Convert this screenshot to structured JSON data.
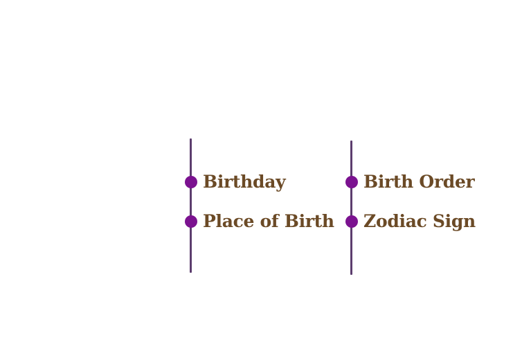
{
  "colors": {
    "line": "#5c3d6e",
    "dot": "#7b1290",
    "text": "#6b4a26"
  },
  "timelines": [
    {
      "items": [
        {
          "label": "Birthday"
        },
        {
          "label": "Place of Birth"
        }
      ]
    },
    {
      "items": [
        {
          "label": "Birth Order"
        },
        {
          "label": "Zodiac Sign"
        }
      ]
    }
  ]
}
